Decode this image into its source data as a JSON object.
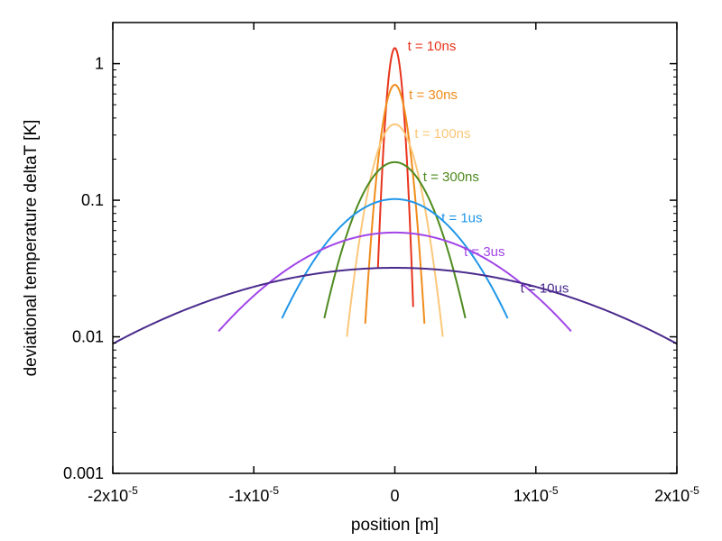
{
  "chart_data": {
    "type": "line",
    "title": "",
    "xlabel": "position [m]",
    "ylabel": "deviational temperature deltaT [K]",
    "xlim": [
      -2e-05,
      2e-05
    ],
    "ylim": [
      0.001,
      2
    ],
    "yscale": "log",
    "grid": false,
    "x_ticks": [
      {
        "value": -2e-05,
        "label": "-2x10",
        "exp": "-5"
      },
      {
        "value": -1e-05,
        "label": "-1x10",
        "exp": "-5"
      },
      {
        "value": 0,
        "label": "0",
        "exp": ""
      },
      {
        "value": 1e-05,
        "label": "1x10",
        "exp": "-5"
      },
      {
        "value": 2e-05,
        "label": "2x10",
        "exp": "-5"
      }
    ],
    "y_ticks": [
      {
        "value": 0.001,
        "label": "0.001"
      },
      {
        "value": 0.01,
        "label": "0.01"
      },
      {
        "value": 0.1,
        "label": "0.1"
      },
      {
        "value": 1,
        "label": "1"
      }
    ],
    "series": [
      {
        "name": "t = 10ns",
        "color": "#e8341c",
        "peak": 1.3,
        "sigma": 4.4e-07,
        "xrange": [
          -1.2e-06,
          1.3e-06
        ],
        "label_at": [
          9e-07,
          1.25
        ]
      },
      {
        "name": "t = 30ns",
        "color": "#f08c1c",
        "peak": 0.7,
        "sigma": 7.4e-07,
        "xrange": [
          -2.1e-06,
          2.1e-06
        ],
        "label_at": [
          1e-06,
          0.55
        ]
      },
      {
        "name": "t = 100ns",
        "color": "#fbc77a",
        "peak": 0.36,
        "sigma": 1.27e-06,
        "xrange": [
          -3.4e-06,
          3.4e-06
        ],
        "label_at": [
          1.4e-06,
          0.285
        ]
      },
      {
        "name": "t = 300ns",
        "color": "#4e8a1e",
        "peak": 0.19,
        "sigma": 2.18e-06,
        "xrange": [
          -5e-06,
          5e-06
        ],
        "label_at": [
          2e-06,
          0.138
        ]
      },
      {
        "name": "t = 1us",
        "color": "#2096e8",
        "peak": 0.102,
        "sigma": 3.99e-06,
        "xrange": [
          -8e-06,
          8e-06
        ],
        "label_at": [
          3.3e-06,
          0.069
        ]
      },
      {
        "name": "t = 3us",
        "color": "#a245e8",
        "peak": 0.058,
        "sigma": 6.85e-06,
        "xrange": [
          -1.25e-05,
          1.25e-05
        ],
        "label_at": [
          4.9e-06,
          0.039
        ]
      },
      {
        "name": "t = 10us",
        "color": "#4a2a8c",
        "peak": 0.032,
        "sigma": 1.25e-05,
        "xrange": [
          -2e-05,
          2e-05
        ],
        "label_at": [
          8.9e-06,
          0.021
        ]
      }
    ]
  }
}
